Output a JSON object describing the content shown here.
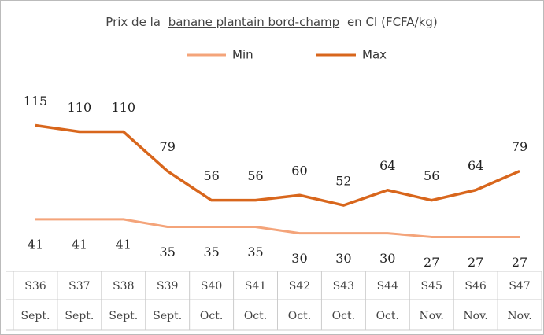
{
  "chart_data": {
    "type": "line",
    "title": {
      "before": "Prix de la",
      "underlined": "banane plantain bord-champ",
      "after": "en CI (FCFA/kg)"
    },
    "categories": [
      "S36",
      "S37",
      "S38",
      "S39",
      "S40",
      "S41",
      "S42",
      "S43",
      "S44",
      "S45",
      "S46",
      "S47"
    ],
    "months": [
      "Sept.",
      "Sept.",
      "Sept.",
      "Sept.",
      "Oct.",
      "Oct.",
      "Oct.",
      "Oct.",
      "Oct.",
      "Nov.",
      "Nov.",
      "Nov."
    ],
    "series": [
      {
        "name": "Min",
        "color": "#f4a47a",
        "values": [
          41,
          41,
          41,
          35,
          35,
          35,
          30,
          30,
          30,
          27,
          27,
          27
        ]
      },
      {
        "name": "Max",
        "color": "#d8661c",
        "values": [
          115,
          110,
          110,
          79,
          56,
          56,
          60,
          52,
          64,
          56,
          64,
          79
        ]
      }
    ],
    "ylim": [
      0,
      150
    ]
  }
}
